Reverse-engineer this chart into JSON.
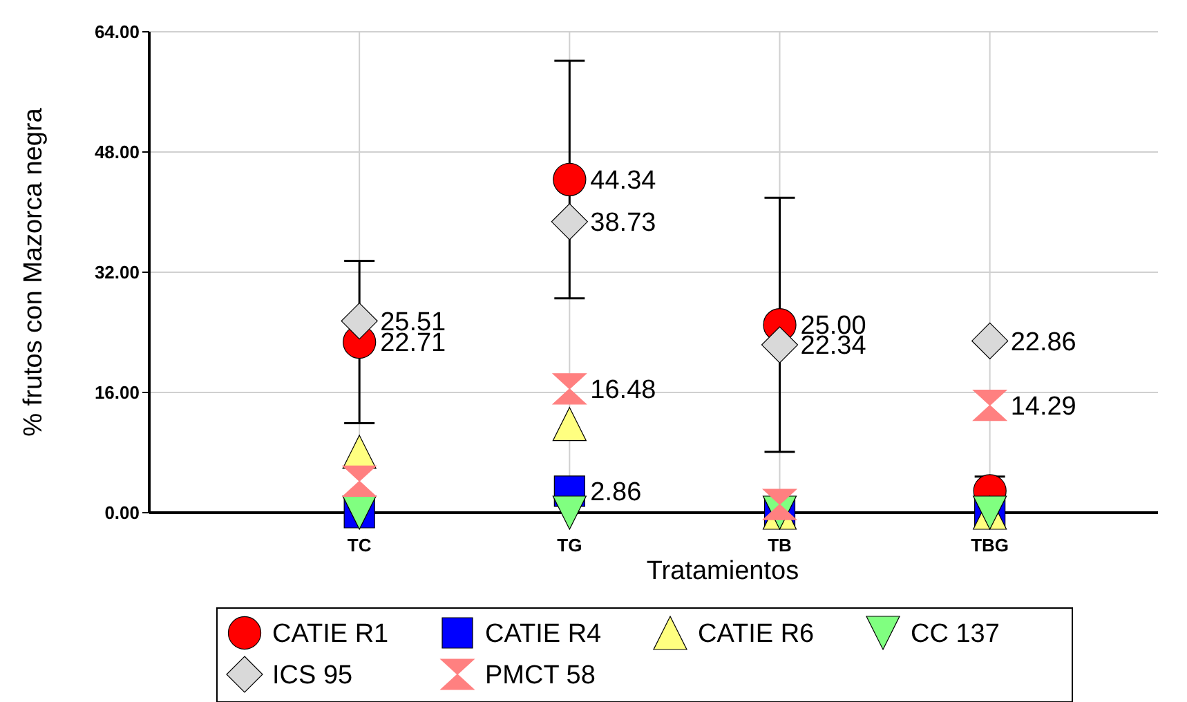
{
  "chart_data": {
    "type": "scatter",
    "xlabel": "Tratamientos",
    "ylabel": "% frutos con Mazorca negra",
    "categories": [
      "TC",
      "TG",
      "TB",
      "TBG"
    ],
    "ylim": [
      0,
      64
    ],
    "yticks": [
      {
        "value": 0,
        "label": "0.00"
      },
      {
        "value": 16,
        "label": "16.00"
      },
      {
        "value": 32,
        "label": "32.00"
      },
      {
        "value": 48,
        "label": "48.00"
      },
      {
        "value": 64,
        "label": "64.00"
      }
    ],
    "grid": true,
    "legend": "bottom",
    "series": [
      {
        "name": "CATIE R1",
        "color": "#ff0000",
        "marker": "circle",
        "values": [
          22.71,
          44.34,
          25.0,
          2.9
        ],
        "errors": [
          10.8,
          15.8,
          16.9,
          1.9
        ],
        "value_labels": [
          "22.71",
          "44.34",
          "25.00",
          null
        ]
      },
      {
        "name": "CATIE R4",
        "color": "#0000ff",
        "marker": "square",
        "values": [
          0,
          2.86,
          0,
          0
        ],
        "value_labels": [
          null,
          "2.86",
          null,
          null
        ]
      },
      {
        "name": "CATIE R6",
        "color": "#ffff80",
        "marker": "triangle",
        "values": [
          8.1,
          11.8,
          0,
          0
        ]
      },
      {
        "name": "CC 137",
        "color": "#80ff80",
        "values": [
          0,
          0,
          0,
          0
        ]
      },
      {
        "name": "ICS 95",
        "color": "#d9d9d9",
        "marker": "diamond",
        "values": [
          25.51,
          38.73,
          22.34,
          22.86
        ],
        "value_labels": [
          "25.51",
          "38.73",
          "22.34",
          "22.86"
        ]
      },
      {
        "name": "PMCT 58",
        "color": "#ff8080",
        "values": [
          4.2,
          16.48,
          1.1,
          14.29
        ],
        "value_labels": [
          null,
          "16.48",
          null,
          "14.29"
        ]
      }
    ]
  }
}
